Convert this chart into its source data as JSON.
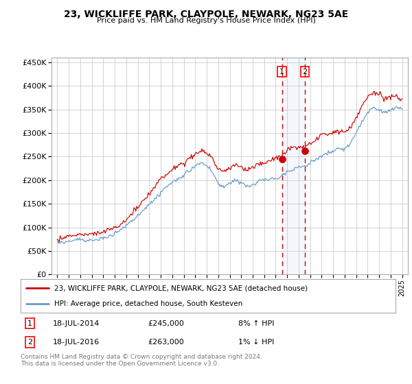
{
  "title": "23, WICKLIFFE PARK, CLAYPOLE, NEWARK, NG23 5AE",
  "subtitle": "Price paid vs. HM Land Registry's House Price Index (HPI)",
  "legend_line1": "23, WICKLIFFE PARK, CLAYPOLE, NEWARK, NG23 5AE (detached house)",
  "legend_line2": "HPI: Average price, detached house, South Kesteven",
  "transaction1_date": "18-JUL-2014",
  "transaction1_price": 245000,
  "transaction1_hpi": "8% ↑ HPI",
  "transaction1_year": 2014.54,
  "transaction2_date": "18-JUL-2016",
  "transaction2_price": 263000,
  "transaction2_hpi": "1% ↓ HPI",
  "transaction2_year": 2016.54,
  "footnote1": "Contains HM Land Registry data © Crown copyright and database right 2024.",
  "footnote2": "This data is licensed under the Open Government Licence v3.0.",
  "red_color": "#cc0000",
  "blue_color": "#6699cc",
  "background_color": "#ffffff",
  "grid_color": "#cccccc",
  "ylim_min": 0,
  "ylim_max": 460000,
  "xlim_min": 1994.5,
  "xlim_max": 2025.5
}
